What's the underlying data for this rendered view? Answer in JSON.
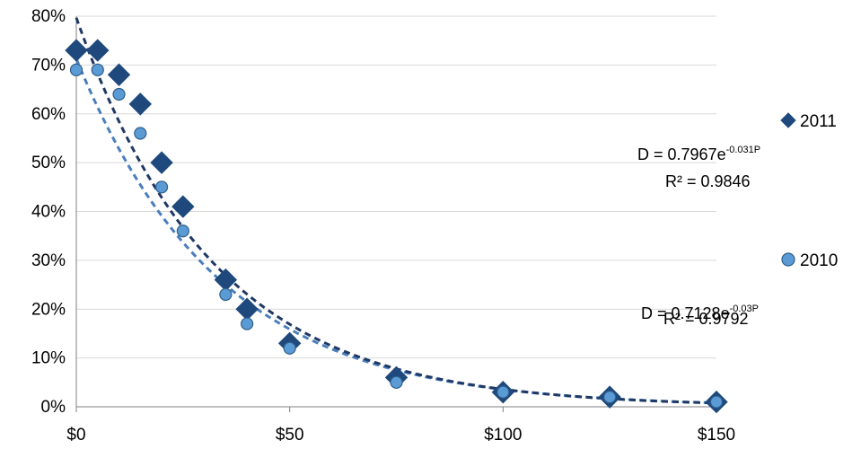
{
  "chart_data": {
    "type": "scatter",
    "title": "",
    "xlabel": "",
    "ylabel": "",
    "xlim": [
      0,
      150
    ],
    "ylim": [
      0,
      0.8
    ],
    "x_ticks": [
      0,
      50,
      100,
      150
    ],
    "x_tick_labels": [
      "$0",
      "$50",
      "$100",
      "$150"
    ],
    "y_ticks": [
      0,
      0.1,
      0.2,
      0.3,
      0.4,
      0.5,
      0.6,
      0.7,
      0.8
    ],
    "y_tick_labels": [
      "0%",
      "10%",
      "20%",
      "30%",
      "40%",
      "50%",
      "60%",
      "70%",
      "80%"
    ],
    "grid": true,
    "legend_position": "right",
    "series": [
      {
        "name": "2011",
        "marker": "diamond",
        "color": "#1f497d",
        "x": [
          0,
          5,
          10,
          15,
          20,
          25,
          35,
          40,
          50,
          75,
          100,
          125,
          150
        ],
        "y": [
          0.73,
          0.73,
          0.68,
          0.62,
          0.5,
          0.41,
          0.26,
          0.2,
          0.13,
          0.06,
          0.03,
          0.02,
          0.01
        ],
        "trendline": {
          "type": "exponential",
          "a": 0.7967,
          "b": -0.031,
          "color": "#1f3864",
          "equation_text": "D = 0.7967e",
          "equation_exponent": "-0.031P",
          "r2_text": "R² = 0.9846"
        }
      },
      {
        "name": "2010",
        "marker": "circle",
        "color": "#5b9bd5",
        "x": [
          0,
          5,
          10,
          15,
          20,
          25,
          35,
          40,
          50,
          75,
          100,
          125,
          150
        ],
        "y": [
          0.69,
          0.69,
          0.64,
          0.56,
          0.45,
          0.36,
          0.23,
          0.17,
          0.12,
          0.05,
          0.03,
          0.02,
          0.01
        ],
        "trendline": {
          "type": "exponential",
          "a": 0.7128,
          "b": -0.03,
          "color": "#4a7ebb",
          "equation_text": "D = 0.7128e",
          "equation_exponent": "-0.03P",
          "r2_text": "R² = 0.9792"
        }
      }
    ]
  }
}
